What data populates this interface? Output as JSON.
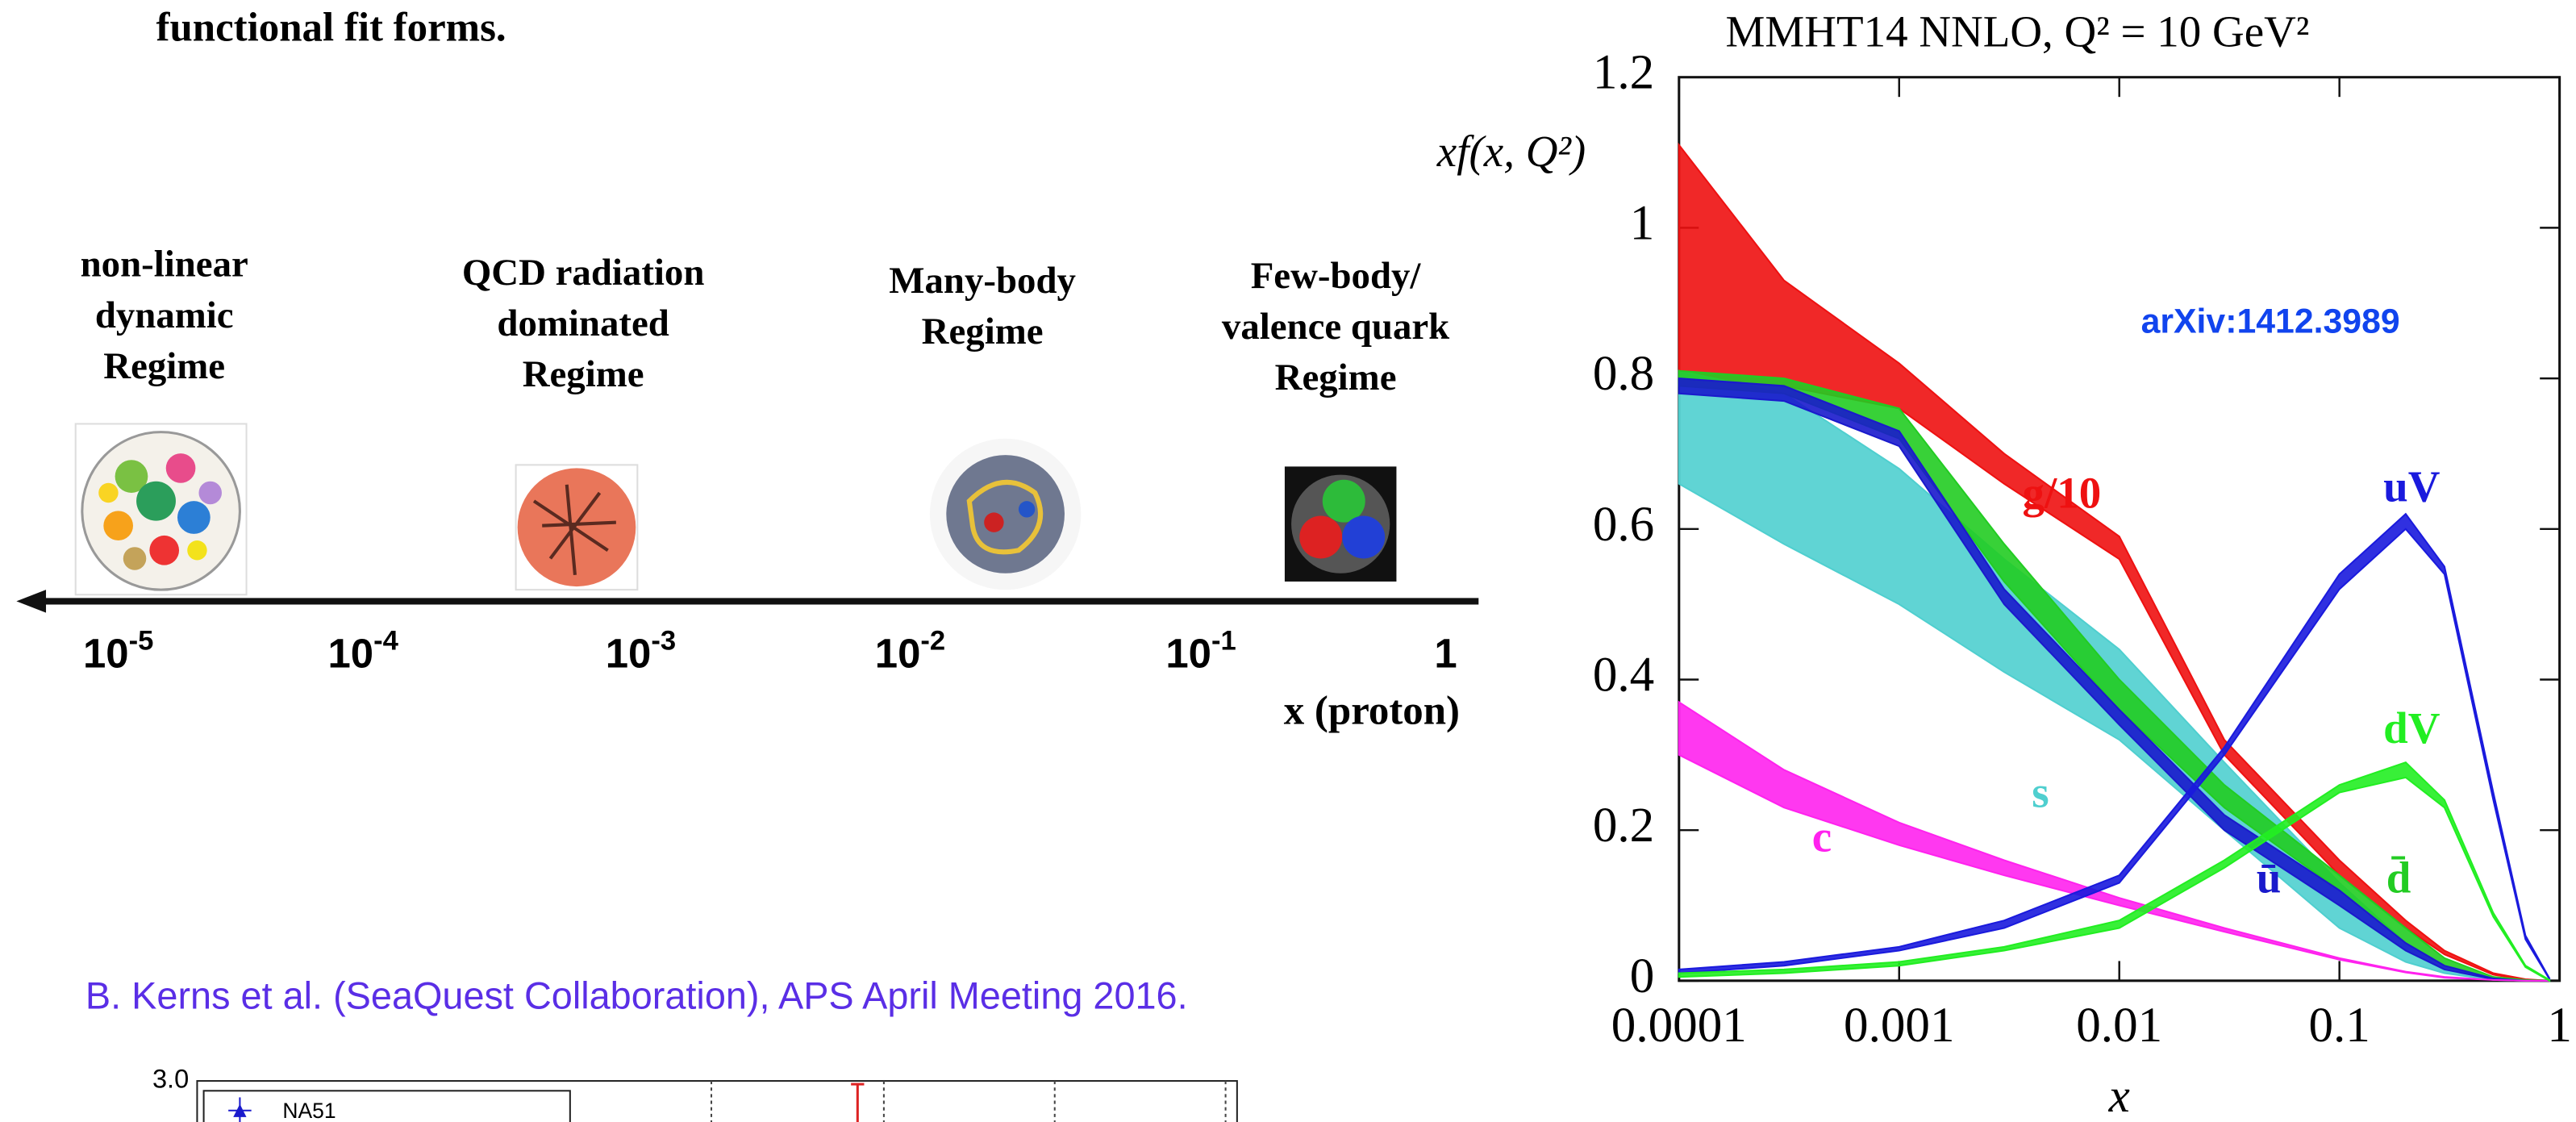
{
  "heading": "functional fit forms.",
  "regimes": [
    {
      "lines": [
        "non-linear",
        "dynamic",
        "Regime"
      ]
    },
    {
      "lines": [
        "QCD radiation",
        "dominated",
        "Regime"
      ]
    },
    {
      "lines": [
        "Many-body",
        "Regime"
      ]
    },
    {
      "lines": [
        "Few-body/",
        "valence quark",
        "Regime"
      ]
    }
  ],
  "x_scale": {
    "ticks": [
      {
        "base": "10",
        "exponent": "-5"
      },
      {
        "base": "10",
        "exponent": "-4"
      },
      {
        "base": "10",
        "exponent": "-3"
      },
      {
        "base": "10",
        "exponent": "-2"
      },
      {
        "base": "10",
        "exponent": "-1"
      },
      {
        "base": "1"
      }
    ],
    "label": "x (proton)"
  },
  "citation": "B. Kerns et al. (SeaQuest Collaboration), APS April Meeting 2016.",
  "inset": {
    "ytick": "3.0",
    "legend": "NA51"
  },
  "chart_data": {
    "type": "band",
    "title": "MMHT14 NNLO, Q² = 10 GeV²",
    "x_label": "x",
    "y_label": "xf(x, Q²)",
    "annotation": "arXiv:1412.3989",
    "x_scale": "log",
    "xlim": [
      0.0001,
      1
    ],
    "xticks": [
      0.0001,
      0.001,
      0.01,
      0.1,
      1
    ],
    "ylim": [
      0,
      1.2
    ],
    "yticks": [
      0,
      0.2,
      0.4,
      0.6,
      0.8,
      1,
      1.2
    ],
    "x": [
      0.0001,
      0.0003,
      0.001,
      0.003,
      0.01,
      0.03,
      0.1,
      0.2,
      0.3,
      0.5,
      0.7,
      0.9
    ],
    "series": [
      {
        "name": "g/10",
        "color": "#ee1111",
        "upper": [
          1.11,
          0.93,
          0.82,
          0.7,
          0.59,
          0.32,
          0.16,
          0.08,
          0.04,
          0.01,
          0.002,
          0
        ],
        "lower": [
          0.8,
          0.79,
          0.76,
          0.66,
          0.56,
          0.3,
          0.14,
          0.07,
          0.035,
          0.008,
          0.001,
          0
        ]
      },
      {
        "name": "s",
        "color": "#4fcfcf",
        "upper": [
          0.81,
          0.78,
          0.68,
          0.56,
          0.44,
          0.29,
          0.13,
          0.05,
          0.02,
          0.002,
          0,
          0
        ],
        "lower": [
          0.66,
          0.58,
          0.5,
          0.41,
          0.32,
          0.2,
          0.07,
          0.025,
          0.01,
          0.001,
          0,
          0
        ]
      },
      {
        "name": "d̄",
        "color": "#22cc22",
        "upper": [
          0.81,
          0.8,
          0.76,
          0.58,
          0.4,
          0.26,
          0.14,
          0.07,
          0.03,
          0.005,
          0.001,
          0
        ],
        "lower": [
          0.79,
          0.78,
          0.72,
          0.53,
          0.36,
          0.23,
          0.12,
          0.05,
          0.02,
          0.003,
          0,
          0
        ]
      },
      {
        "name": "ū",
        "color": "#1a1acc",
        "upper": [
          0.8,
          0.79,
          0.73,
          0.52,
          0.36,
          0.22,
          0.12,
          0.05,
          0.02,
          0.003,
          0,
          0
        ],
        "lower": [
          0.78,
          0.77,
          0.71,
          0.5,
          0.34,
          0.2,
          0.1,
          0.04,
          0.015,
          0.002,
          0,
          0
        ]
      },
      {
        "name": "c",
        "color": "#ff22ee",
        "upper": [
          0.37,
          0.28,
          0.21,
          0.16,
          0.11,
          0.07,
          0.03,
          0.012,
          0.005,
          0.001,
          0,
          0
        ],
        "lower": [
          0.3,
          0.23,
          0.18,
          0.14,
          0.1,
          0.065,
          0.028,
          0.011,
          0.004,
          0.001,
          0,
          0
        ]
      },
      {
        "name": "uV",
        "color": "#1a1add",
        "upper": [
          0.015,
          0.025,
          0.045,
          0.08,
          0.14,
          0.31,
          0.54,
          0.62,
          0.55,
          0.25,
          0.06,
          0.003
        ],
        "lower": [
          0.01,
          0.02,
          0.04,
          0.07,
          0.13,
          0.3,
          0.52,
          0.6,
          0.54,
          0.24,
          0.055,
          0.002
        ]
      },
      {
        "name": "dV",
        "color": "#22ee22",
        "upper": [
          0.01,
          0.015,
          0.025,
          0.045,
          0.08,
          0.16,
          0.26,
          0.29,
          0.24,
          0.09,
          0.02,
          0.001
        ],
        "lower": [
          0.005,
          0.01,
          0.02,
          0.04,
          0.07,
          0.15,
          0.25,
          0.27,
          0.23,
          0.085,
          0.018,
          0
        ]
      }
    ]
  }
}
